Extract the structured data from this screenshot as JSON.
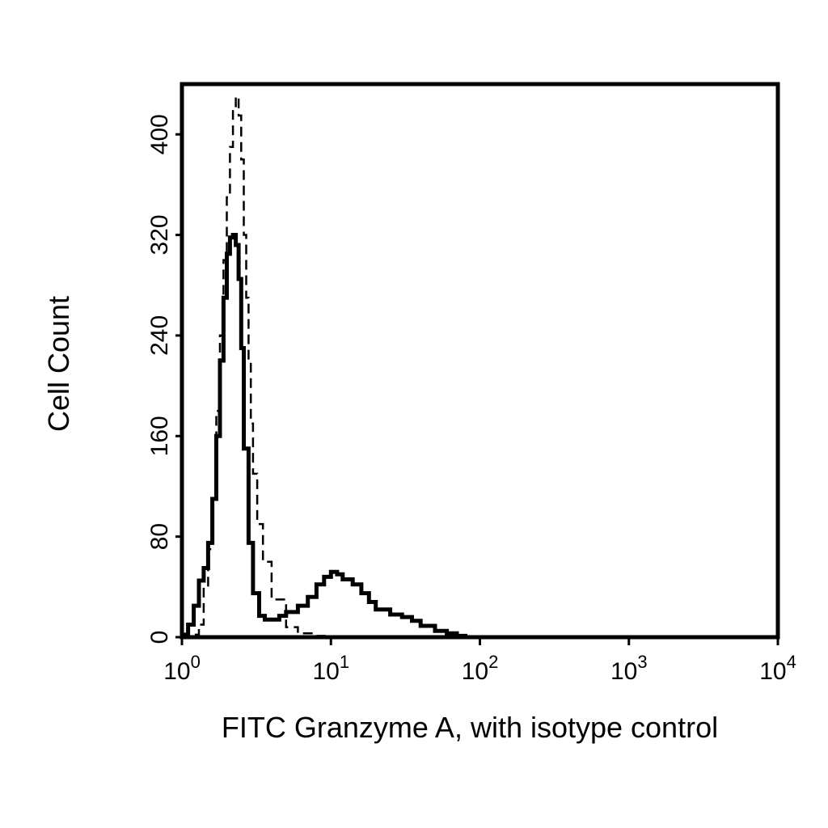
{
  "chart_data": {
    "type": "line",
    "title": "",
    "xlabel": "FITC Granzyme A, with isotype control",
    "ylabel": "Cell Count",
    "x_scale": "log",
    "xlim": [
      1,
      10000
    ],
    "ylim": [
      0,
      440
    ],
    "x_ticks": [
      {
        "value": 1,
        "base": "10",
        "exp": "0"
      },
      {
        "value": 10,
        "base": "10",
        "exp": "1"
      },
      {
        "value": 100,
        "base": "10",
        "exp": "2"
      },
      {
        "value": 1000,
        "base": "10",
        "exp": "3"
      },
      {
        "value": 10000,
        "base": "10",
        "exp": "4"
      }
    ],
    "y_ticks": [
      0,
      80,
      160,
      240,
      320,
      400
    ],
    "grid": false,
    "legend": null,
    "series": [
      {
        "style": "solid",
        "color": "#000000",
        "x": [
          1.0,
          1.1,
          1.2,
          1.3,
          1.4,
          1.5,
          1.6,
          1.7,
          1.8,
          1.9,
          2.0,
          2.1,
          2.2,
          2.3,
          2.4,
          2.5,
          2.6,
          2.8,
          3.0,
          3.3,
          3.6,
          4.0,
          4.5,
          5.0,
          6.0,
          7.0,
          8.0,
          9.0,
          10.0,
          11.0,
          12.0,
          14.0,
          16.0,
          18.0,
          20.0,
          25.0,
          30.0,
          35.0,
          40.0,
          50.0,
          60.0,
          70.0,
          80.0,
          90.0
        ],
        "y": [
          2,
          10,
          25,
          45,
          55,
          75,
          110,
          160,
          220,
          270,
          305,
          318,
          320,
          312,
          285,
          230,
          150,
          75,
          35,
          17,
          14,
          14,
          17,
          20,
          25,
          32,
          42,
          48,
          52,
          50,
          46,
          42,
          35,
          28,
          22,
          18,
          16,
          13,
          9,
          5,
          3,
          1,
          0,
          0
        ]
      },
      {
        "style": "dashed",
        "color": "#000000",
        "x": [
          1.0,
          1.1,
          1.2,
          1.3,
          1.4,
          1.5,
          1.6,
          1.7,
          1.8,
          1.9,
          2.0,
          2.1,
          2.2,
          2.3,
          2.4,
          2.5,
          2.6,
          2.7,
          2.8,
          2.9,
          3.0,
          3.2,
          3.5,
          4.0,
          5.0,
          6.0,
          8.0,
          10.0,
          15.0,
          20.0
        ],
        "y": [
          0,
          0,
          2,
          10,
          40,
          70,
          110,
          180,
          240,
          300,
          350,
          390,
          420,
          430,
          415,
          380,
          320,
          270,
          220,
          170,
          130,
          90,
          60,
          30,
          8,
          3,
          1,
          0,
          0,
          0
        ]
      }
    ]
  }
}
